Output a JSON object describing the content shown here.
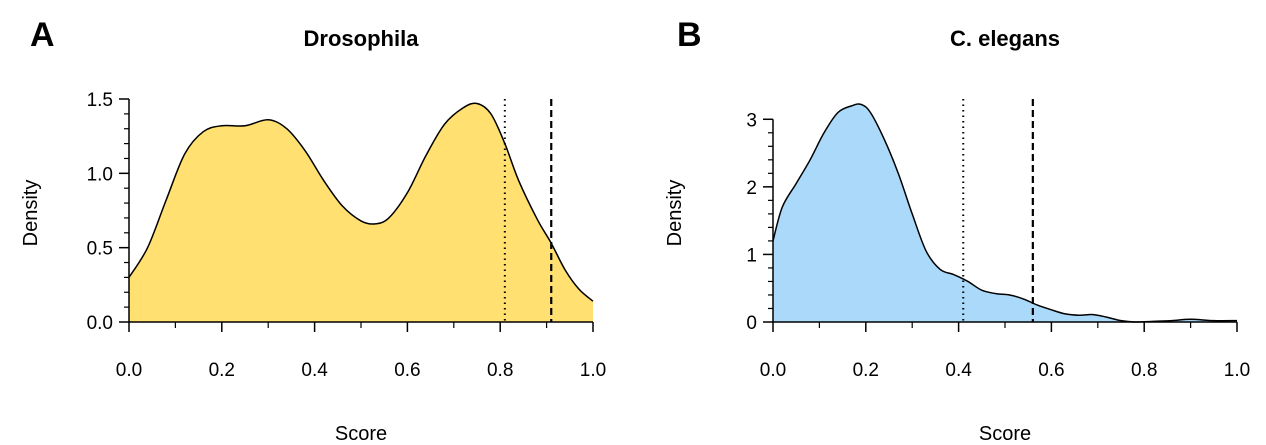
{
  "chart_data": [
    {
      "panel": "A",
      "type": "area",
      "title": "Drosophila",
      "xlabel": "Score",
      "ylabel": "Density",
      "xlim": [
        0,
        1
      ],
      "ylim": [
        0,
        1.5
      ],
      "xticks": [
        0.0,
        0.2,
        0.4,
        0.6,
        0.8,
        1.0
      ],
      "xtick_labels": [
        "0.0",
        "0.2",
        "0.4",
        "0.6",
        "0.8",
        "1.0"
      ],
      "yticks": [
        0.0,
        0.5,
        1.0,
        1.5
      ],
      "ytick_labels": [
        "0.0",
        "0.5",
        "1.0",
        "1.5"
      ],
      "fill_color": "#FFE070",
      "line_color": "#000000",
      "x": [
        0.0,
        0.04,
        0.08,
        0.12,
        0.16,
        0.2,
        0.25,
        0.3,
        0.34,
        0.38,
        0.42,
        0.46,
        0.5,
        0.53,
        0.56,
        0.6,
        0.64,
        0.68,
        0.72,
        0.75,
        0.78,
        0.81,
        0.84,
        0.88,
        0.91,
        0.94,
        0.97,
        1.0
      ],
      "y": [
        0.3,
        0.5,
        0.82,
        1.13,
        1.28,
        1.32,
        1.32,
        1.36,
        1.3,
        1.15,
        0.95,
        0.78,
        0.68,
        0.66,
        0.7,
        0.87,
        1.12,
        1.33,
        1.44,
        1.47,
        1.4,
        1.2,
        0.95,
        0.69,
        0.53,
        0.35,
        0.22,
        0.14
      ],
      "vlines": [
        {
          "x": 0.81,
          "style": "dotted"
        },
        {
          "x": 0.91,
          "style": "dashed"
        }
      ]
    },
    {
      "panel": "B",
      "type": "area",
      "title": "C. elegans",
      "xlabel": "Score",
      "ylabel": "Density",
      "xlim": [
        0,
        1
      ],
      "ylim": [
        0,
        3.3
      ],
      "xticks": [
        0.0,
        0.2,
        0.4,
        0.6,
        0.8,
        1.0
      ],
      "xtick_labels": [
        "0.0",
        "0.2",
        "0.4",
        "0.6",
        "0.8",
        "1.0"
      ],
      "yticks": [
        0,
        1,
        2,
        3
      ],
      "ytick_labels": [
        "0",
        "1",
        "2",
        "3"
      ],
      "fill_color": "#ABD9FA",
      "line_color": "#000000",
      "x": [
        0.0,
        0.02,
        0.05,
        0.08,
        0.11,
        0.14,
        0.17,
        0.19,
        0.21,
        0.24,
        0.27,
        0.3,
        0.33,
        0.36,
        0.39,
        0.42,
        0.45,
        0.48,
        0.51,
        0.54,
        0.57,
        0.6,
        0.63,
        0.66,
        0.69,
        0.72,
        0.75,
        0.78,
        0.82,
        0.86,
        0.9,
        0.95,
        1.0
      ],
      "y": [
        1.2,
        1.7,
        2.05,
        2.4,
        2.8,
        3.1,
        3.2,
        3.22,
        3.1,
        2.7,
        2.2,
        1.6,
        1.05,
        0.78,
        0.7,
        0.6,
        0.47,
        0.42,
        0.4,
        0.34,
        0.25,
        0.18,
        0.12,
        0.1,
        0.11,
        0.07,
        0.02,
        0.0,
        0.01,
        0.02,
        0.04,
        0.02,
        0.02
      ],
      "vlines": [
        {
          "x": 0.41,
          "style": "dotted"
        },
        {
          "x": 0.56,
          "style": "dashed"
        }
      ]
    }
  ]
}
